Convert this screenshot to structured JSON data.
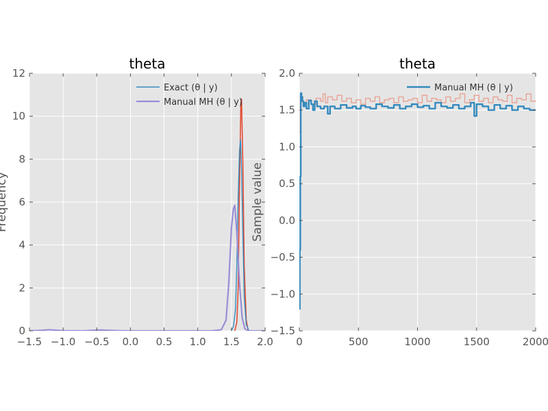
{
  "chart_data": [
    {
      "type": "line",
      "title": "theta",
      "xlabel": "",
      "ylabel": "Frequency",
      "xlim": [
        -1.5,
        2.0
      ],
      "ylim": [
        0,
        12
      ],
      "xticks": [
        -1.5,
        -1.0,
        -0.5,
        0.0,
        0.5,
        1.0,
        1.5,
        2.0
      ],
      "xtick_labels": [
        "−1.5",
        "−1.0",
        "−0.5",
        "0.0",
        "0.5",
        "1.0",
        "1.5",
        "2.0"
      ],
      "yticks": [
        0,
        2,
        4,
        6,
        8,
        10,
        12
      ],
      "ytick_labels": [
        "0",
        "2",
        "4",
        "6",
        "8",
        "10",
        "12"
      ],
      "grid": true,
      "legend_position": "top-right",
      "legend": [
        "Exact (θ | y)",
        "Manual MH (θ | y)"
      ],
      "series": [
        {
          "name": "Exact (θ | y)",
          "color": "#348abd",
          "x": [
            1.5,
            1.53,
            1.56,
            1.58,
            1.6,
            1.62,
            1.635,
            1.65,
            1.67,
            1.69,
            1.72,
            1.76
          ],
          "y": [
            0,
            0.2,
            1.0,
            3.0,
            6.2,
            8.4,
            8.9,
            7.6,
            4.5,
            1.6,
            0.3,
            0
          ]
        },
        {
          "name": "Manual MH (θ | y)",
          "color": "#988ed5",
          "x": [
            -1.5,
            -1.35,
            -1.2,
            -1.0,
            -0.7,
            -0.45,
            -0.2,
            0.0,
            0.5,
            1.0,
            1.2,
            1.35,
            1.42,
            1.46,
            1.5,
            1.53,
            1.55,
            1.58,
            1.62,
            1.66,
            1.7,
            1.75,
            2.0
          ],
          "y": [
            0.0,
            0.02,
            0.05,
            0.01,
            0.0,
            0.04,
            0.01,
            0.0,
            0.0,
            0.0,
            0.0,
            0.05,
            0.5,
            2.2,
            4.8,
            5.7,
            5.85,
            4.6,
            2.2,
            0.6,
            0.1,
            0.0,
            0.0
          ]
        },
        {
          "name": "",
          "color": "#e24a33",
          "x": [
            1.55,
            1.58,
            1.6,
            1.62,
            1.64,
            1.65,
            1.67,
            1.69,
            1.72,
            1.75
          ],
          "y": [
            0.0,
            0.4,
            2.0,
            6.8,
            10.6,
            10.8,
            7.8,
            3.0,
            0.5,
            0.0
          ]
        }
      ]
    },
    {
      "type": "line",
      "title": "theta",
      "xlabel": "",
      "ylabel": "Sample value",
      "xlim": [
        0,
        2000
      ],
      "ylim": [
        -1.5,
        2.0
      ],
      "xticks": [
        0,
        500,
        1000,
        1500,
        2000
      ],
      "xtick_labels": [
        "0",
        "500",
        "1000",
        "1500",
        "2000"
      ],
      "yticks": [
        -1.5,
        -1.0,
        -0.5,
        0.0,
        0.5,
        1.0,
        1.5,
        2.0
      ],
      "ytick_labels": [
        "−1.5",
        "−1.0",
        "−0.5",
        "0.0",
        "0.5",
        "1.0",
        "1.5",
        "2.0"
      ],
      "grid": true,
      "legend_position": "top-right",
      "legend": [
        "Manual MH (θ | y)"
      ],
      "series": [
        {
          "name": "Manual MH (θ | y)",
          "color": "#348abd",
          "x": [
            0,
            4,
            8,
            12,
            18,
            25,
            35,
            45,
            60,
            80,
            100,
            115,
            130,
            150,
            180,
            210,
            240,
            260,
            300,
            350,
            400,
            450,
            480,
            520,
            560,
            600,
            650,
            700,
            750,
            800,
            850,
            900,
            950,
            1000,
            1050,
            1100,
            1150,
            1200,
            1250,
            1300,
            1350,
            1400,
            1450,
            1480,
            1500,
            1550,
            1600,
            1650,
            1700,
            1750,
            1800,
            1850,
            1900,
            1950,
            2000
          ],
          "y": [
            -1.2,
            -0.4,
            0.6,
            1.73,
            1.68,
            1.62,
            1.55,
            1.6,
            1.52,
            1.63,
            1.58,
            1.5,
            1.62,
            1.55,
            1.52,
            1.55,
            1.45,
            1.55,
            1.52,
            1.57,
            1.53,
            1.55,
            1.52,
            1.56,
            1.54,
            1.52,
            1.58,
            1.55,
            1.53,
            1.57,
            1.52,
            1.55,
            1.58,
            1.54,
            1.56,
            1.52,
            1.6,
            1.55,
            1.53,
            1.57,
            1.52,
            1.55,
            1.6,
            1.42,
            1.58,
            1.55,
            1.5,
            1.57,
            1.52,
            1.56,
            1.5,
            1.55,
            1.52,
            1.5,
            1.5
          ]
        },
        {
          "name": "",
          "color": "#e8a99c",
          "x": [
            0,
            8,
            15,
            30,
            60,
            100,
            140,
            180,
            200,
            220,
            240,
            280,
            320,
            360,
            400,
            440,
            480,
            520,
            560,
            600,
            640,
            680,
            720,
            760,
            800,
            840,
            880,
            920,
            960,
            1000,
            1040,
            1080,
            1120,
            1160,
            1200,
            1240,
            1280,
            1320,
            1360,
            1400,
            1440,
            1480,
            1520,
            1560,
            1600,
            1640,
            1680,
            1720,
            1760,
            1800,
            1840,
            1880,
            1920,
            1960,
            2000
          ],
          "y": [
            1.2,
            1.62,
            1.68,
            1.6,
            1.64,
            1.58,
            1.66,
            1.62,
            1.72,
            1.6,
            1.68,
            1.64,
            1.7,
            1.62,
            1.66,
            1.6,
            1.64,
            1.58,
            1.66,
            1.62,
            1.68,
            1.6,
            1.64,
            1.66,
            1.6,
            1.68,
            1.62,
            1.64,
            1.66,
            1.6,
            1.7,
            1.62,
            1.66,
            1.64,
            1.6,
            1.68,
            1.62,
            1.66,
            1.72,
            1.6,
            1.64,
            1.7,
            1.62,
            1.66,
            1.6,
            1.68,
            1.64,
            1.62,
            1.7,
            1.6,
            1.66,
            1.64,
            1.72,
            1.62,
            1.64
          ]
        }
      ]
    }
  ]
}
